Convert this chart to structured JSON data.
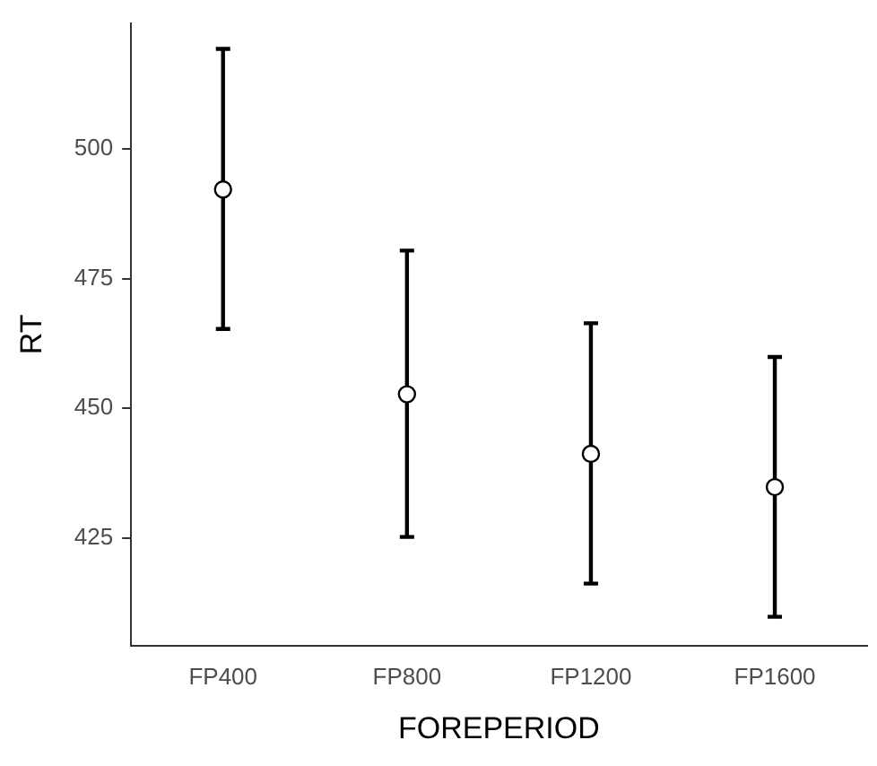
{
  "chart_data": {
    "type": "scatter",
    "xlabel": "FOREPERIOD",
    "ylabel": "RT",
    "categories": [
      "FP400",
      "FP800",
      "FP1200",
      "FP1600"
    ],
    "values": [
      492.2,
      452.7,
      441.2,
      434.8
    ],
    "errors": [
      [
        465.3,
        519.3
      ],
      [
        425.2,
        480.4
      ],
      [
        416.2,
        466.4
      ],
      [
        409.8,
        459.9
      ]
    ],
    "color": "#000000",
    "marker": "circle",
    "grid": false,
    "legend": false,
    "ylim": [
      404.2,
      524.3
    ],
    "yticks": [
      425,
      450,
      475,
      500
    ]
  }
}
